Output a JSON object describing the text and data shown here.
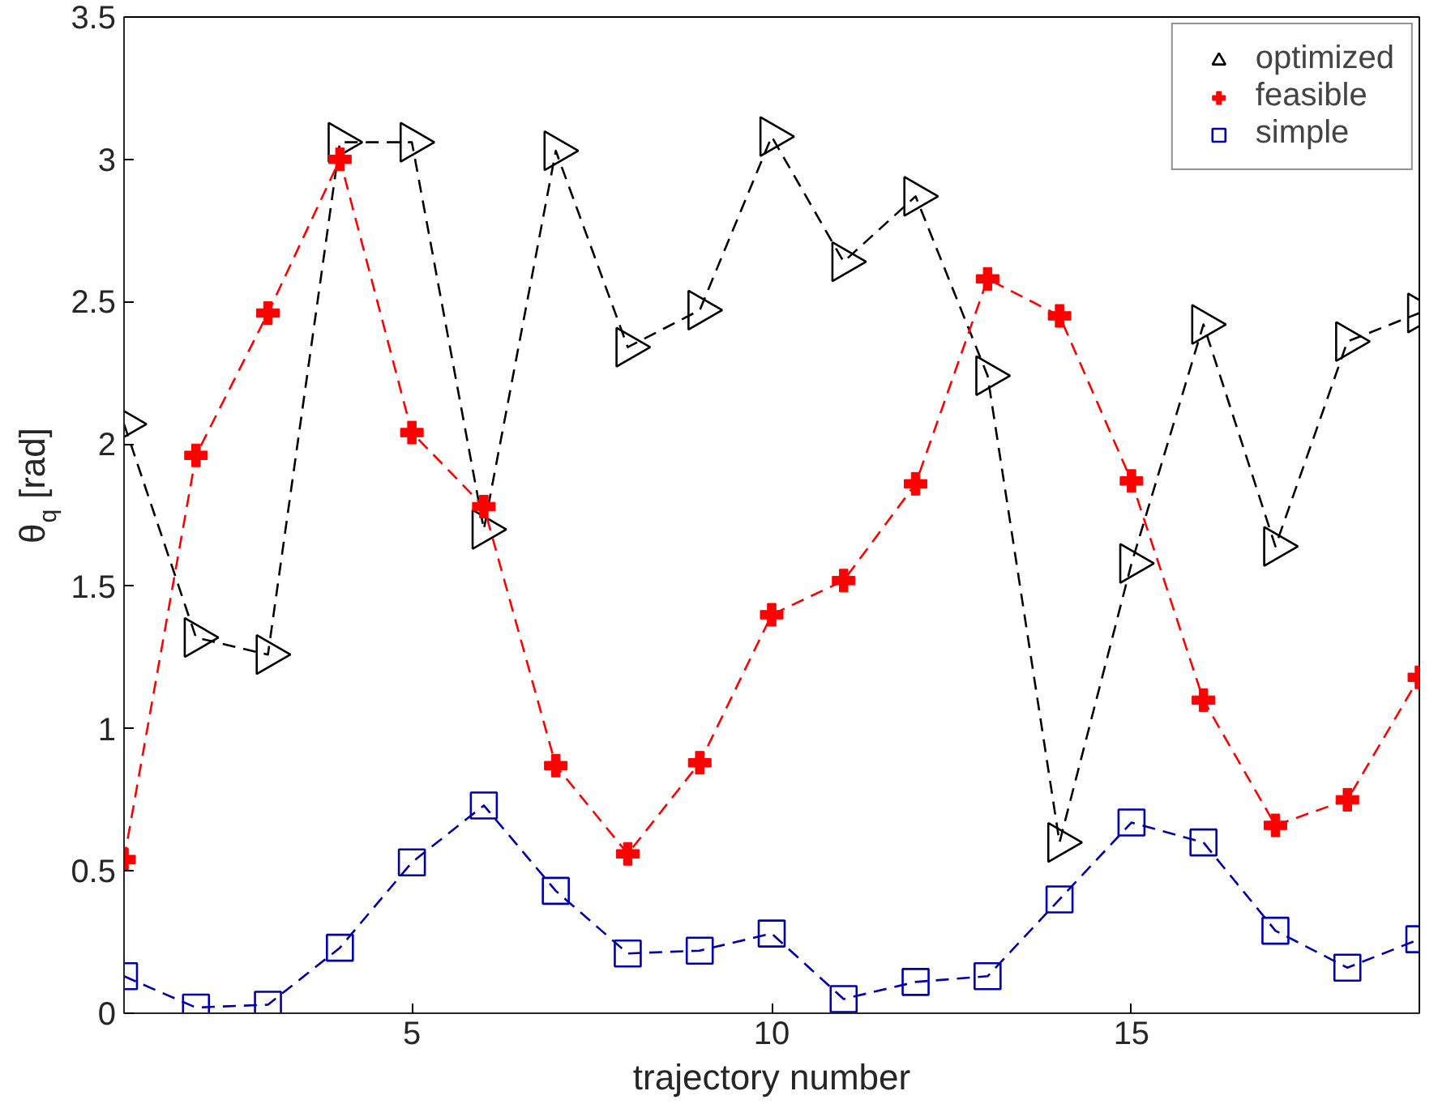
{
  "chart_data": {
    "type": "line",
    "xlabel": "trajectory number",
    "ylabel": "θ$_{q}$ [rad]",
    "x": [
      1,
      2,
      3,
      4,
      5,
      6,
      7,
      8,
      9,
      10,
      11,
      12,
      13,
      14,
      15,
      16,
      17,
      18,
      19
    ],
    "xlim": [
      1,
      19
    ],
    "xticks": [
      5,
      10,
      15
    ],
    "ylim": [
      0,
      3.5
    ],
    "yticks": [
      0,
      0.5,
      1,
      1.5,
      2,
      2.5,
      3,
      3.5
    ],
    "grid": false,
    "legend": "top right",
    "line_style": "dashed",
    "series": [
      {
        "name": "optimized",
        "color": "#000000",
        "marker": "triangle",
        "values": [
          2.07,
          1.32,
          1.26,
          3.06,
          3.06,
          1.7,
          3.03,
          2.34,
          2.47,
          3.08,
          2.64,
          2.87,
          2.24,
          0.6,
          1.58,
          2.42,
          1.64,
          2.36,
          2.46
        ]
      },
      {
        "name": "feasible",
        "color": "#ff0000",
        "marker": "cross",
        "values": [
          0.54,
          1.96,
          2.46,
          3.0,
          2.04,
          1.78,
          0.87,
          0.56,
          0.88,
          1.4,
          1.52,
          1.86,
          2.58,
          2.45,
          1.87,
          1.1,
          0.66,
          0.75,
          1.18
        ]
      },
      {
        "name": "simple",
        "color": "#0000aa",
        "marker": "square",
        "values": [
          0.13,
          0.02,
          0.03,
          0.23,
          0.53,
          0.73,
          0.43,
          0.21,
          0.22,
          0.28,
          0.05,
          0.11,
          0.13,
          0.4,
          0.67,
          0.6,
          0.29,
          0.16,
          0.26
        ]
      }
    ]
  }
}
